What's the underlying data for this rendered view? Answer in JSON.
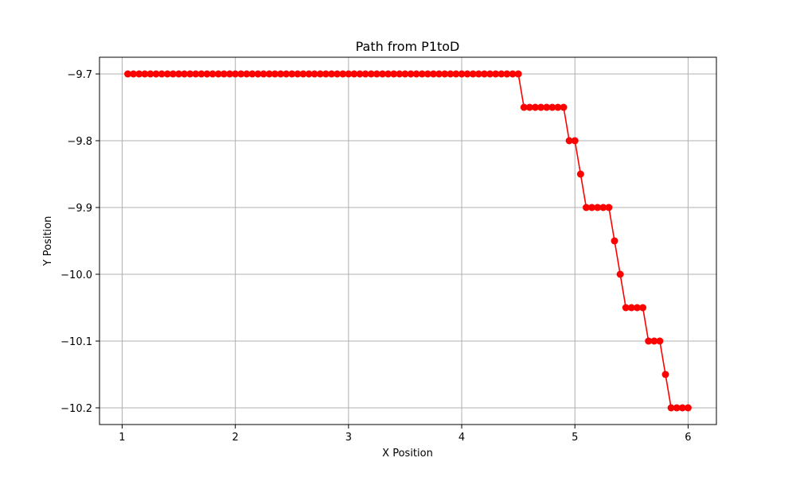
{
  "chart_data": {
    "type": "line",
    "title": "Path from P1toD",
    "xlabel": "X Position",
    "ylabel": "Y Position",
    "xlim": [
      0.8,
      6.25
    ],
    "ylim": [
      -10.225,
      -9.675
    ],
    "x_ticks": [
      1,
      2,
      3,
      4,
      5,
      6
    ],
    "x_tick_labels": [
      "1",
      "2",
      "3",
      "4",
      "5",
      "6"
    ],
    "y_ticks": [
      -9.7,
      -9.8,
      -9.9,
      -10.0,
      -10.1,
      -10.2
    ],
    "y_tick_labels": [
      "−9.7",
      "−9.8",
      "−9.9",
      "−10.0",
      "−10.1",
      "−10.2"
    ],
    "grid": true,
    "colors": {
      "series": "#ff0000",
      "grid": "#b0b0b0"
    },
    "series": [
      {
        "marker": "circle",
        "x": [
          1.05,
          1.1,
          1.15,
          1.2,
          1.25,
          1.3,
          1.35,
          1.4,
          1.45,
          1.5,
          1.55,
          1.6,
          1.65,
          1.7,
          1.75,
          1.8,
          1.85,
          1.9,
          1.95,
          2.0,
          2.05,
          2.1,
          2.15,
          2.2,
          2.25,
          2.3,
          2.35,
          2.4,
          2.45,
          2.5,
          2.55,
          2.6,
          2.65,
          2.7,
          2.75,
          2.8,
          2.85,
          2.9,
          2.95,
          3.0,
          3.05,
          3.1,
          3.15,
          3.2,
          3.25,
          3.3,
          3.35,
          3.4,
          3.45,
          3.5,
          3.55,
          3.6,
          3.65,
          3.7,
          3.75,
          3.8,
          3.85,
          3.9,
          3.95,
          4.0,
          4.05,
          4.1,
          4.15,
          4.2,
          4.25,
          4.3,
          4.35,
          4.4,
          4.45,
          4.5,
          4.55,
          4.6,
          4.65,
          4.7,
          4.75,
          4.8,
          4.85,
          4.9,
          4.95,
          5.0,
          5.05,
          5.1,
          5.15,
          5.2,
          5.25,
          5.3,
          5.35,
          5.4,
          5.45,
          5.5,
          5.55,
          5.6,
          5.65,
          5.7,
          5.75,
          5.8,
          5.85,
          5.9,
          5.95,
          6.0
        ],
        "y": [
          -9.7,
          -9.7,
          -9.7,
          -9.7,
          -9.7,
          -9.7,
          -9.7,
          -9.7,
          -9.7,
          -9.7,
          -9.7,
          -9.7,
          -9.7,
          -9.7,
          -9.7,
          -9.7,
          -9.7,
          -9.7,
          -9.7,
          -9.7,
          -9.7,
          -9.7,
          -9.7,
          -9.7,
          -9.7,
          -9.7,
          -9.7,
          -9.7,
          -9.7,
          -9.7,
          -9.7,
          -9.7,
          -9.7,
          -9.7,
          -9.7,
          -9.7,
          -9.7,
          -9.7,
          -9.7,
          -9.7,
          -9.7,
          -9.7,
          -9.7,
          -9.7,
          -9.7,
          -9.7,
          -9.7,
          -9.7,
          -9.7,
          -9.7,
          -9.7,
          -9.7,
          -9.7,
          -9.7,
          -9.7,
          -9.7,
          -9.7,
          -9.7,
          -9.7,
          -9.7,
          -9.7,
          -9.7,
          -9.7,
          -9.7,
          -9.7,
          -9.7,
          -9.7,
          -9.7,
          -9.7,
          -9.7,
          -9.75,
          -9.75,
          -9.75,
          -9.75,
          -9.75,
          -9.75,
          -9.75,
          -9.75,
          -9.8,
          -9.8,
          -9.85,
          -9.9,
          -9.9,
          -9.9,
          -9.9,
          -9.9,
          -9.95,
          -10.0,
          -10.05,
          -10.05,
          -10.05,
          -10.05,
          -10.1,
          -10.1,
          -10.1,
          -10.15,
          -10.2,
          -10.2,
          -10.2,
          -10.2
        ]
      }
    ]
  }
}
